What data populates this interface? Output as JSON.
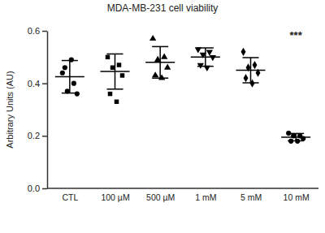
{
  "chart_data": {
    "type": "scatter",
    "title": "MDA-MB-231 cell viability",
    "y_label": "Arbitrary Units (AU)",
    "categories": [
      "CTL",
      "100 µM",
      "500 µM",
      "1 mM",
      "5 mM",
      "10 mM"
    ],
    "color": "#000000",
    "ylim": [
      0,
      0.6
    ],
    "yticks": [
      {
        "value": 0,
        "label": "0.0"
      },
      0.2,
      0.4,
      0.6
    ],
    "series": [
      {
        "marker": "circle",
        "values": [
          0.44,
          0.4,
          0.37,
          0.36,
          0.46,
          0.49
        ],
        "mean": 0.425,
        "error": 0.062
      },
      {
        "marker": "square",
        "values": [
          0.5,
          0.47,
          0.46,
          0.43,
          0.36,
          0.33
        ],
        "mean": 0.445,
        "error": 0.067
      },
      {
        "marker": "triangle",
        "values": [
          0.57,
          0.5,
          0.49,
          0.46,
          0.43,
          0.42
        ],
        "mean": 0.48,
        "error": 0.06
      },
      {
        "marker": "triangle-down",
        "values": [
          0.53,
          0.52,
          0.51,
          0.5,
          0.47,
          0.46
        ],
        "mean": 0.5,
        "error": 0.035
      },
      {
        "marker": "diamond",
        "values": [
          0.52,
          0.47,
          0.46,
          0.44,
          0.42,
          0.4
        ],
        "mean": 0.45,
        "error": 0.048
      },
      {
        "marker": "circle",
        "values": [
          0.21,
          0.2,
          0.2,
          0.19,
          0.18,
          0.18
        ],
        "mean": 0.195,
        "error": 0.014
      }
    ],
    "annotations": [
      {
        "text": "***",
        "category": "10 mM",
        "y": 0.57
      }
    ]
  }
}
